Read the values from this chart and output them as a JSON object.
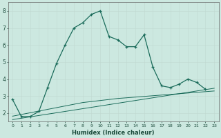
{
  "xlabel": "Humidex (Indice chaleur)",
  "x_values": [
    0,
    1,
    2,
    3,
    4,
    5,
    6,
    7,
    8,
    9,
    10,
    11,
    12,
    13,
    14,
    15,
    16,
    17,
    18,
    19,
    20,
    21,
    22,
    23
  ],
  "line1_y": [
    2.8,
    1.8,
    1.8,
    2.1,
    3.5,
    4.9,
    6.0,
    7.0,
    7.3,
    7.8,
    8.0,
    6.5,
    6.3,
    5.9,
    5.9,
    6.6,
    4.7,
    3.6,
    3.5,
    3.7,
    4.0,
    3.8,
    3.4,
    null
  ],
  "reg1_y": [
    1.82,
    1.92,
    2.02,
    2.12,
    2.22,
    2.32,
    2.42,
    2.52,
    2.62,
    2.68,
    2.74,
    2.8,
    2.86,
    2.9,
    2.94,
    2.98,
    3.02,
    3.06,
    3.1,
    3.14,
    3.18,
    3.22,
    3.26,
    3.3
  ],
  "reg2_y": [
    1.62,
    1.7,
    1.78,
    1.86,
    1.94,
    2.02,
    2.1,
    2.18,
    2.26,
    2.34,
    2.42,
    2.5,
    2.58,
    2.66,
    2.74,
    2.82,
    2.9,
    2.98,
    3.06,
    3.14,
    3.22,
    3.3,
    3.38,
    3.46
  ],
  "bg_color": "#cce8e0",
  "grid_major_color": "#c0d8d0",
  "grid_minor_color": "#daeee8",
  "line_color": "#1a6b5a",
  "ylim": [
    1.5,
    8.5
  ],
  "xlim": [
    -0.5,
    23.5
  ],
  "yticks": [
    2,
    3,
    4,
    5,
    6,
    7,
    8
  ],
  "xticks": [
    0,
    1,
    2,
    3,
    4,
    5,
    6,
    7,
    8,
    9,
    10,
    11,
    12,
    13,
    14,
    15,
    16,
    17,
    18,
    19,
    20,
    21,
    22,
    23
  ]
}
